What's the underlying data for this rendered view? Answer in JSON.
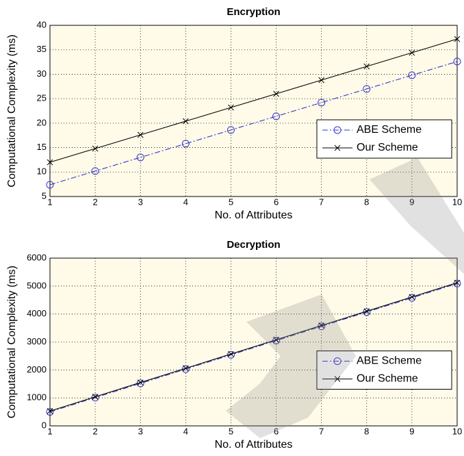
{
  "chart_data": [
    {
      "type": "line",
      "title": "Encryption",
      "xlabel": "No. of Attributes",
      "ylabel": "Computational Complexity (ms)",
      "x": [
        1,
        2,
        3,
        4,
        5,
        6,
        7,
        8,
        9,
        10
      ],
      "xlim": [
        1,
        10
      ],
      "xticks": [
        1,
        2,
        3,
        4,
        5,
        6,
        7,
        8,
        9,
        10
      ],
      "ylim": [
        5,
        40
      ],
      "yticks": [
        5,
        10,
        15,
        20,
        25,
        30,
        35,
        40
      ],
      "grid": true,
      "legend": "right",
      "series": [
        {
          "name": "ABE Scheme",
          "color": "#3333cc",
          "marker": "o",
          "linestyle": "dashdot",
          "values": [
            7.4,
            10.2,
            13.0,
            15.8,
            18.6,
            21.4,
            24.2,
            27.0,
            29.8,
            32.6
          ]
        },
        {
          "name": "Our Scheme",
          "color": "#000000",
          "marker": "x",
          "linestyle": "solid",
          "values": [
            12.0,
            14.8,
            17.6,
            20.4,
            23.2,
            26.0,
            28.8,
            31.6,
            34.4,
            37.2
          ]
        }
      ]
    },
    {
      "type": "line",
      "title": "Decryption",
      "xlabel": "No. of Attributes",
      "ylabel": "Computational Complexity (ms)",
      "x": [
        1,
        2,
        3,
        4,
        5,
        6,
        7,
        8,
        9,
        10
      ],
      "xlim": [
        1,
        10
      ],
      "xticks": [
        1,
        2,
        3,
        4,
        5,
        6,
        7,
        8,
        9,
        10
      ],
      "ylim": [
        0,
        6000
      ],
      "yticks": [
        0,
        1000,
        2000,
        3000,
        4000,
        5000,
        6000
      ],
      "grid": true,
      "legend": "right",
      "series": [
        {
          "name": "ABE Scheme",
          "color": "#3333cc",
          "marker": "o",
          "linestyle": "dashdot",
          "values": [
            500,
            1010,
            1520,
            2030,
            2540,
            3050,
            3560,
            4070,
            4580,
            5090
          ]
        },
        {
          "name": "Our Scheme",
          "color": "#000000",
          "marker": "x",
          "linestyle": "solid",
          "values": [
            530,
            1040,
            1550,
            2060,
            2570,
            3080,
            3590,
            4100,
            4610,
            5120
          ]
        }
      ]
    }
  ]
}
